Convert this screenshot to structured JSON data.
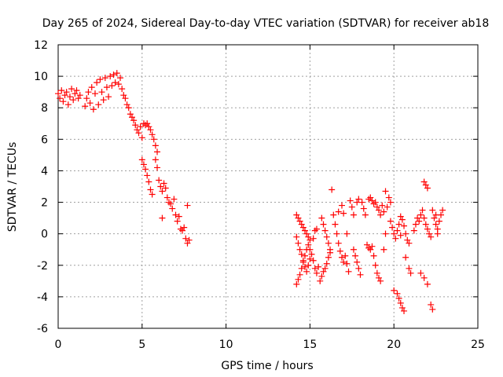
{
  "chart_data": {
    "type": "scatter",
    "title": "Day 265 of 2024, Sidereal Day-to-day VTEC variation (SDTVAR) for receiver ab18",
    "xlabel": "GPS time / hours",
    "ylabel": "SDTVAR / TECUs",
    "xlim": [
      0,
      25
    ],
    "ylim": [
      -6,
      12
    ],
    "xticks": [
      0,
      5,
      10,
      15,
      20,
      25
    ],
    "yticks": [
      -6,
      -4,
      -2,
      0,
      2,
      4,
      6,
      8,
      10,
      12
    ],
    "grid": true,
    "marker": "+",
    "color": "#ff0000",
    "series": [
      {
        "name": "SDTVAR",
        "points": [
          [
            0.0,
            8.9
          ],
          [
            0.1,
            8.6
          ],
          [
            0.2,
            9.1
          ],
          [
            0.3,
            8.4
          ],
          [
            0.4,
            8.8
          ],
          [
            0.5,
            9.0
          ],
          [
            0.6,
            8.2
          ],
          [
            0.7,
            8.7
          ],
          [
            0.8,
            9.2
          ],
          [
            0.9,
            8.5
          ],
          [
            1.0,
            8.9
          ],
          [
            1.1,
            9.1
          ],
          [
            1.2,
            8.6
          ],
          [
            1.3,
            8.8
          ],
          [
            1.6,
            8.1
          ],
          [
            1.7,
            8.6
          ],
          [
            1.8,
            9.0
          ],
          [
            1.9,
            8.3
          ],
          [
            2.0,
            9.3
          ],
          [
            2.1,
            7.9
          ],
          [
            2.2,
            8.9
          ],
          [
            2.3,
            9.6
          ],
          [
            2.4,
            8.2
          ],
          [
            2.5,
            9.8
          ],
          [
            2.6,
            9.0
          ],
          [
            2.7,
            8.5
          ],
          [
            2.8,
            9.9
          ],
          [
            2.9,
            9.3
          ],
          [
            3.0,
            8.7
          ],
          [
            3.1,
            10.0
          ],
          [
            3.2,
            9.4
          ],
          [
            3.3,
            10.1
          ],
          [
            3.4,
            9.6
          ],
          [
            3.5,
            10.2
          ],
          [
            3.6,
            9.5
          ],
          [
            3.7,
            9.9
          ],
          [
            3.8,
            9.2
          ],
          [
            3.9,
            8.8
          ],
          [
            4.0,
            8.6
          ],
          [
            4.1,
            8.2
          ],
          [
            4.2,
            8.0
          ],
          [
            4.3,
            7.6
          ],
          [
            4.4,
            7.4
          ],
          [
            4.5,
            7.2
          ],
          [
            4.6,
            6.9
          ],
          [
            4.7,
            6.6
          ],
          [
            4.8,
            6.4
          ],
          [
            4.9,
            6.8
          ],
          [
            5.0,
            6.1
          ],
          [
            5.1,
            7.0
          ],
          [
            5.2,
            6.9
          ],
          [
            5.3,
            7.0
          ],
          [
            5.4,
            6.8
          ],
          [
            5.5,
            6.6
          ],
          [
            5.6,
            6.3
          ],
          [
            5.7,
            6.0
          ],
          [
            5.8,
            5.6
          ],
          [
            5.9,
            5.2
          ],
          [
            5.0,
            4.7
          ],
          [
            5.1,
            4.4
          ],
          [
            5.2,
            4.1
          ],
          [
            5.3,
            3.7
          ],
          [
            5.4,
            3.3
          ],
          [
            5.5,
            2.8
          ],
          [
            5.6,
            2.5
          ],
          [
            5.8,
            4.7
          ],
          [
            5.9,
            4.2
          ],
          [
            6.0,
            3.4
          ],
          [
            6.1,
            3.0
          ],
          [
            6.2,
            2.7
          ],
          [
            6.3,
            3.2
          ],
          [
            6.4,
            2.9
          ],
          [
            6.5,
            2.3
          ],
          [
            6.6,
            2.0
          ],
          [
            6.7,
            1.9
          ],
          [
            6.8,
            1.6
          ],
          [
            6.9,
            2.2
          ],
          [
            7.0,
            1.2
          ],
          [
            7.1,
            0.8
          ],
          [
            7.2,
            1.1
          ],
          [
            7.3,
            0.3
          ],
          [
            7.4,
            0.2
          ],
          [
            7.5,
            0.4
          ],
          [
            7.7,
            1.8
          ],
          [
            6.2,
            1.0
          ],
          [
            7.6,
            -0.3
          ],
          [
            7.7,
            -0.6
          ],
          [
            7.8,
            -0.4
          ],
          [
            14.2,
            1.2
          ],
          [
            14.3,
            1.0
          ],
          [
            14.4,
            0.8
          ],
          [
            14.5,
            0.6
          ],
          [
            14.6,
            0.4
          ],
          [
            14.7,
            0.2
          ],
          [
            14.8,
            0.0
          ],
          [
            14.9,
            -0.2
          ],
          [
            15.0,
            -0.4
          ],
          [
            14.2,
            -0.2
          ],
          [
            14.3,
            -0.6
          ],
          [
            14.4,
            -1.0
          ],
          [
            14.5,
            -1.3
          ],
          [
            14.6,
            -1.7
          ],
          [
            14.7,
            -2.1
          ],
          [
            14.8,
            -2.4
          ],
          [
            14.9,
            -2.0
          ],
          [
            15.0,
            -1.6
          ],
          [
            14.2,
            -3.2
          ],
          [
            14.3,
            -2.9
          ],
          [
            14.4,
            -2.6
          ],
          [
            14.5,
            -2.2
          ],
          [
            14.6,
            -1.8
          ],
          [
            14.7,
            -1.4
          ],
          [
            14.8,
            -1.0
          ],
          [
            14.9,
            -0.7
          ],
          [
            15.0,
            -1.0
          ],
          [
            15.1,
            -1.3
          ],
          [
            15.2,
            -1.7
          ],
          [
            15.3,
            -2.2
          ],
          [
            15.4,
            -2.5
          ],
          [
            15.5,
            -2.1
          ],
          [
            15.2,
            -0.3
          ],
          [
            15.3,
            0.2
          ],
          [
            15.4,
            0.3
          ],
          [
            15.6,
            -3.0
          ],
          [
            15.7,
            -2.7
          ],
          [
            15.8,
            -2.4
          ],
          [
            15.9,
            -2.2
          ],
          [
            16.0,
            -1.9
          ],
          [
            16.1,
            -1.5
          ],
          [
            16.2,
            -1.2
          ],
          [
            15.7,
            1.0
          ],
          [
            15.8,
            0.6
          ],
          [
            15.9,
            0.2
          ],
          [
            16.0,
            -0.2
          ],
          [
            16.1,
            -0.6
          ],
          [
            16.2,
            -1.0
          ],
          [
            16.3,
            2.8
          ],
          [
            16.4,
            1.2
          ],
          [
            16.5,
            0.6
          ],
          [
            16.6,
            0.0
          ],
          [
            16.7,
            -0.6
          ],
          [
            16.8,
            -1.1
          ],
          [
            16.9,
            -1.5
          ],
          [
            17.0,
            -1.8
          ],
          [
            17.1,
            -1.4
          ],
          [
            17.2,
            -1.9
          ],
          [
            17.3,
            -2.4
          ],
          [
            16.7,
            1.4
          ],
          [
            16.9,
            1.8
          ],
          [
            17.0,
            1.3
          ],
          [
            17.2,
            0.0
          ],
          [
            17.4,
            2.1
          ],
          [
            17.5,
            1.7
          ],
          [
            17.6,
            1.2
          ],
          [
            17.6,
            -1.0
          ],
          [
            17.7,
            -1.4
          ],
          [
            17.8,
            -1.8
          ],
          [
            17.9,
            -2.2
          ],
          [
            18.0,
            -2.6
          ],
          [
            17.8,
            2.0
          ],
          [
            17.9,
            2.2
          ],
          [
            18.1,
            2.0
          ],
          [
            18.2,
            1.6
          ],
          [
            18.3,
            1.2
          ],
          [
            18.4,
            -0.7
          ],
          [
            18.5,
            -0.9
          ],
          [
            18.6,
            -1.0
          ],
          [
            18.7,
            -0.8
          ],
          [
            18.8,
            -1.4
          ],
          [
            18.9,
            -2.0
          ],
          [
            19.0,
            -2.5
          ],
          [
            19.1,
            -2.8
          ],
          [
            19.2,
            -3.0
          ],
          [
            18.5,
            2.2
          ],
          [
            18.6,
            2.3
          ],
          [
            18.7,
            2.1
          ],
          [
            18.8,
            1.9
          ],
          [
            18.9,
            2.0
          ],
          [
            19.0,
            1.7
          ],
          [
            19.1,
            1.5
          ],
          [
            19.2,
            1.2
          ],
          [
            19.3,
            1.8
          ],
          [
            19.4,
            1.4
          ],
          [
            19.5,
            2.7
          ],
          [
            19.6,
            1.7
          ],
          [
            19.7,
            2.3
          ],
          [
            19.8,
            2.0
          ],
          [
            19.4,
            -1.0
          ],
          [
            19.5,
            0.0
          ],
          [
            19.8,
            0.8
          ],
          [
            19.9,
            0.4
          ],
          [
            20.0,
            0.0
          ],
          [
            20.1,
            -0.3
          ],
          [
            20.2,
            0.2
          ],
          [
            20.3,
            0.6
          ],
          [
            20.4,
            -0.1
          ],
          [
            20.0,
            -3.6
          ],
          [
            20.2,
            -3.8
          ],
          [
            20.3,
            -4.1
          ],
          [
            20.4,
            -4.4
          ],
          [
            20.5,
            -4.7
          ],
          [
            20.6,
            -4.9
          ],
          [
            20.4,
            1.1
          ],
          [
            20.5,
            0.9
          ],
          [
            20.6,
            0.5
          ],
          [
            20.7,
            0.0
          ],
          [
            20.8,
            -0.4
          ],
          [
            20.9,
            -0.6
          ],
          [
            20.7,
            -1.5
          ],
          [
            20.9,
            -2.2
          ],
          [
            21.0,
            -2.5
          ],
          [
            21.2,
            0.2
          ],
          [
            21.3,
            0.6
          ],
          [
            21.4,
            1.0
          ],
          [
            21.5,
            0.8
          ],
          [
            21.6,
            1.2
          ],
          [
            21.7,
            1.5
          ],
          [
            21.8,
            1.0
          ],
          [
            21.9,
            0.6
          ],
          [
            22.0,
            0.3
          ],
          [
            22.1,
            0.0
          ],
          [
            22.2,
            -0.2
          ],
          [
            21.8,
            3.3
          ],
          [
            21.9,
            3.1
          ],
          [
            22.0,
            2.9
          ],
          [
            21.6,
            -2.5
          ],
          [
            21.8,
            -2.8
          ],
          [
            22.0,
            -3.2
          ],
          [
            22.2,
            -4.5
          ],
          [
            22.3,
            -4.8
          ],
          [
            22.3,
            1.5
          ],
          [
            22.4,
            1.0
          ],
          [
            22.5,
            0.6
          ],
          [
            22.6,
            0.3
          ],
          [
            22.7,
            0.8
          ],
          [
            22.8,
            1.2
          ],
          [
            22.9,
            1.5
          ],
          [
            22.6,
            0.0
          ],
          [
            22.5,
            1.2
          ]
        ]
      }
    ]
  }
}
